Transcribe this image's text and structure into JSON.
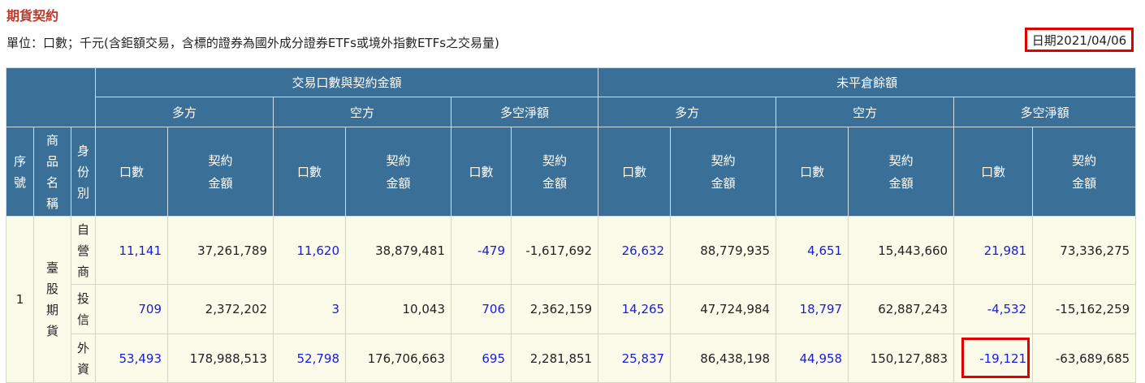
{
  "page": {
    "title": "期貨契約",
    "unit_note": "單位：口數；千元(含鉅額交易，含標的證券為國外成分證券ETFs或境外指數ETFs之交易量)",
    "date_label": "日期2021/04/06"
  },
  "table": {
    "group_headers": {
      "trading": "交易口數與契約金額",
      "open_interest": "未平倉餘額"
    },
    "sub_headers": {
      "long": "多方",
      "short": "空方",
      "net": "多空淨額"
    },
    "col_headers": {
      "seq": "序號",
      "product": "商品名稱",
      "identity": "身份別",
      "contracts": "口數",
      "amount": "契約金額"
    },
    "seq_value": "1",
    "product_value": "臺股期貨",
    "rows": [
      {
        "identity": "自營商",
        "values": [
          "11,141",
          "37,261,789",
          "11,620",
          "38,879,481",
          "-479",
          "-1,617,692",
          "26,632",
          "88,779,935",
          "4,651",
          "15,443,660",
          "21,981",
          "73,336,275"
        ]
      },
      {
        "identity": "投信",
        "values": [
          "709",
          "2,372,202",
          "3",
          "10,043",
          "706",
          "2,362,159",
          "14,265",
          "47,724,984",
          "18,797",
          "62,887,243",
          "-4,532",
          "-15,162,259"
        ]
      },
      {
        "identity": "外資",
        "values": [
          "53,493",
          "178,988,513",
          "52,798",
          "176,706,663",
          "695",
          "2,281,851",
          "25,837",
          "86,438,198",
          "44,958",
          "150,127,883",
          "-19,121",
          "-63,689,685"
        ]
      }
    ]
  },
  "colors": {
    "header_bg": "#3a6f98",
    "row_bg": "#fbfbea",
    "title": "#c0392b",
    "link_blue": "#1a1adb",
    "highlight_red": "#e00000"
  }
}
